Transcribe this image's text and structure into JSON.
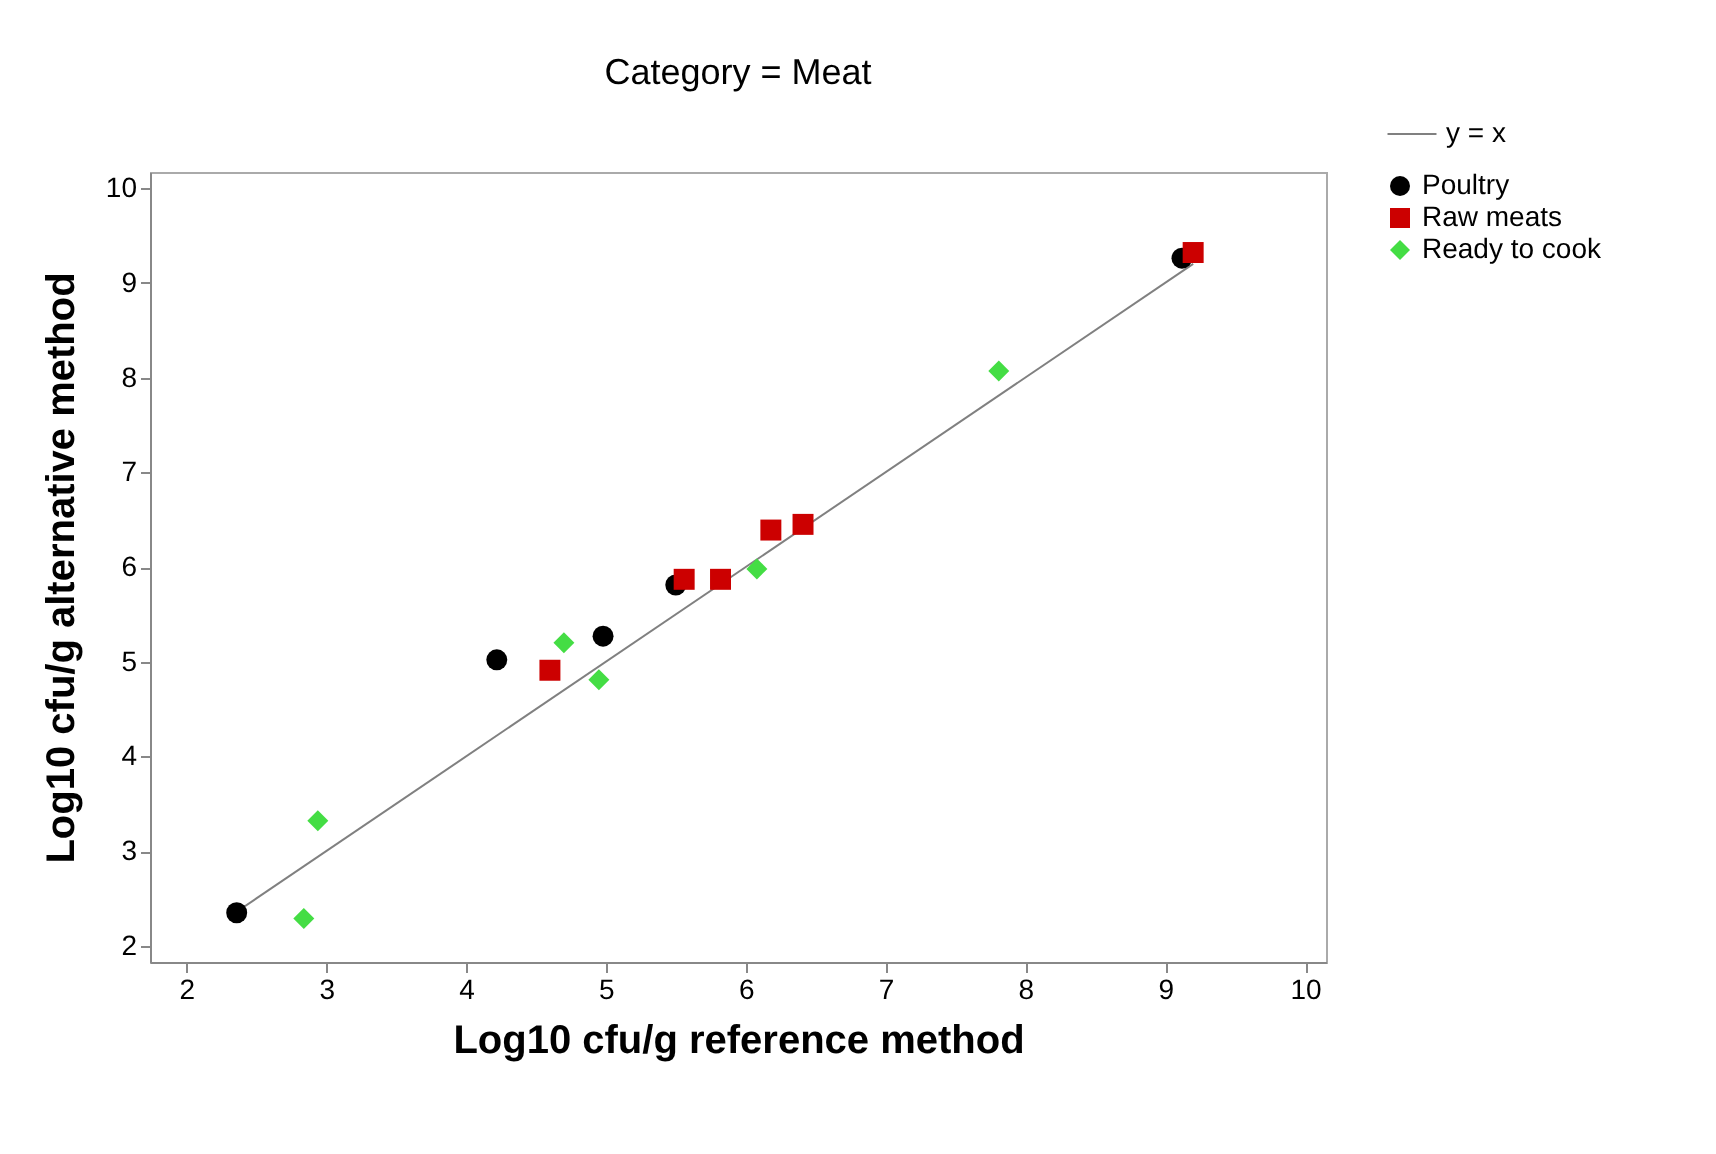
{
  "chart_data": {
    "type": "scatter",
    "title": "Category = Meat",
    "xlabel": "Log10 cfu/g reference method",
    "ylabel": "Log10 cfu/g alternative method",
    "xlim": [
      1.74,
      10.15
    ],
    "ylim": [
      1.83,
      10.17
    ],
    "xticks": [
      2,
      3,
      4,
      5,
      6,
      7,
      8,
      9,
      10
    ],
    "yticks": [
      2,
      3,
      4,
      5,
      6,
      7,
      8,
      9,
      10
    ],
    "grid": false,
    "legend": "top right",
    "series": [
      {
        "name": "y = x",
        "type": "line",
        "color": "#808080",
        "line_style": "solid",
        "x": [
          2.36,
          9.2
        ],
        "values": [
          2.36,
          9.2
        ]
      },
      {
        "name": "Poultry",
        "color": "#000000",
        "marker": "circle",
        "x": [
          2.36,
          4.22,
          4.98,
          5.5,
          9.12
        ],
        "values": [
          2.35,
          5.02,
          5.27,
          5.81,
          9.26
        ]
      },
      {
        "name": "Raw meats",
        "color": "#cc0000",
        "marker": "square",
        "x": [
          4.6,
          5.56,
          5.82,
          6.18,
          6.41,
          9.2
        ],
        "values": [
          4.91,
          5.87,
          5.87,
          6.39,
          6.45,
          9.32
        ]
      },
      {
        "name": "Ready to cook",
        "color": "#44dd44",
        "marker": "diamond",
        "x": [
          2.84,
          2.94,
          4.7,
          4.95,
          6.08,
          7.81
        ],
        "values": [
          2.29,
          3.32,
          5.2,
          4.81,
          5.98,
          8.07
        ]
      }
    ]
  }
}
